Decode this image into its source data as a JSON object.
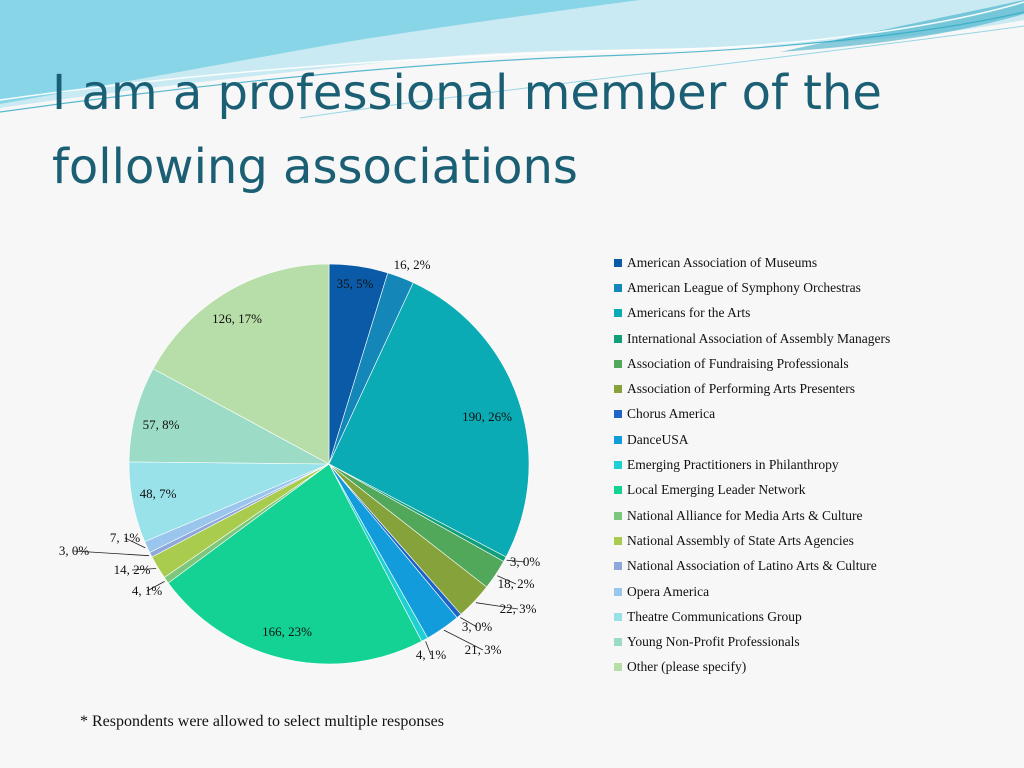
{
  "slide": {
    "title": "I am a professional member of the following associations",
    "footnote": "* Respondents were allowed to select multiple responses"
  },
  "theme": {
    "title_color": "#1b5f74",
    "wave_colors": [
      "#7fd3e6",
      "#b9e6f0",
      "#2fa7c4"
    ]
  },
  "chart_data": {
    "type": "pie",
    "title": "",
    "legend_position": "right",
    "start": "12 o'clock, clockwise",
    "slices": [
      {
        "label": "American Association of Museums",
        "value": 35,
        "percent": "5%",
        "data_label": "35, 5%",
        "color": "#0b5aa8"
      },
      {
        "label": "American League of Symphony Orchestras",
        "value": 16,
        "percent": "2%",
        "data_label": "16, 2%",
        "color": "#1586b8"
      },
      {
        "label": "Americans for the Arts",
        "value": 190,
        "percent": "26%",
        "data_label": "190, 26%",
        "color": "#0aabb4"
      },
      {
        "label": "International Association of Assembly Managers",
        "value": 3,
        "percent": "0%",
        "data_label": "3, 0%",
        "color": "#119e7a"
      },
      {
        "label": "Association of Fundraising Professionals",
        "value": 18,
        "percent": "2%",
        "data_label": "18, 2%",
        "color": "#52a85a"
      },
      {
        "label": "Association of Performing Arts Presenters",
        "value": 22,
        "percent": "3%",
        "data_label": "22, 3%",
        "color": "#86a23a"
      },
      {
        "label": "Chorus America",
        "value": 3,
        "percent": "0%",
        "data_label": "3, 0%",
        "color": "#1d63c8"
      },
      {
        "label": "DanceUSA",
        "value": 21,
        "percent": "3%",
        "data_label": "21, 3%",
        "color": "#129cdb"
      },
      {
        "label": "Emerging Practitioners in Philanthropy",
        "value": 4,
        "percent": "1%",
        "data_label": "4, 1%",
        "color": "#1ed0d2"
      },
      {
        "label": "Local Emerging Leader Network",
        "value": 166,
        "percent": "23%",
        "data_label": "166, 23%",
        "color": "#13d294"
      },
      {
        "label": "National Alliance for Media Arts & Culture",
        "value": 4,
        "percent": "1%",
        "data_label": "4, 1%",
        "color": "#7cc77c"
      },
      {
        "label": "National Assembly of State Arts Agencies",
        "value": 14,
        "percent": "2%",
        "data_label": "14, 2%",
        "color": "#a9cc4f"
      },
      {
        "label": "National Association of Latino Arts & Culture",
        "value": 3,
        "percent": "0%",
        "data_label": "3, 0%",
        "color": "#8fa8dc"
      },
      {
        "label": "Opera America",
        "value": 7,
        "percent": "1%",
        "data_label": "7, 1%",
        "color": "#9ac6ee"
      },
      {
        "label": "Theatre Communications Group",
        "value": 48,
        "percent": "7%",
        "data_label": "48, 7%",
        "color": "#9ae2ea"
      },
      {
        "label": "Young Non-Profit Professionals",
        "value": 57,
        "percent": "8%",
        "data_label": "57, 8%",
        "color": "#9cdcc6"
      },
      {
        "label": "Other (please specify)",
        "value": 126,
        "percent": "17%",
        "data_label": "126, 17%",
        "color": "#b7dea8"
      }
    ]
  }
}
